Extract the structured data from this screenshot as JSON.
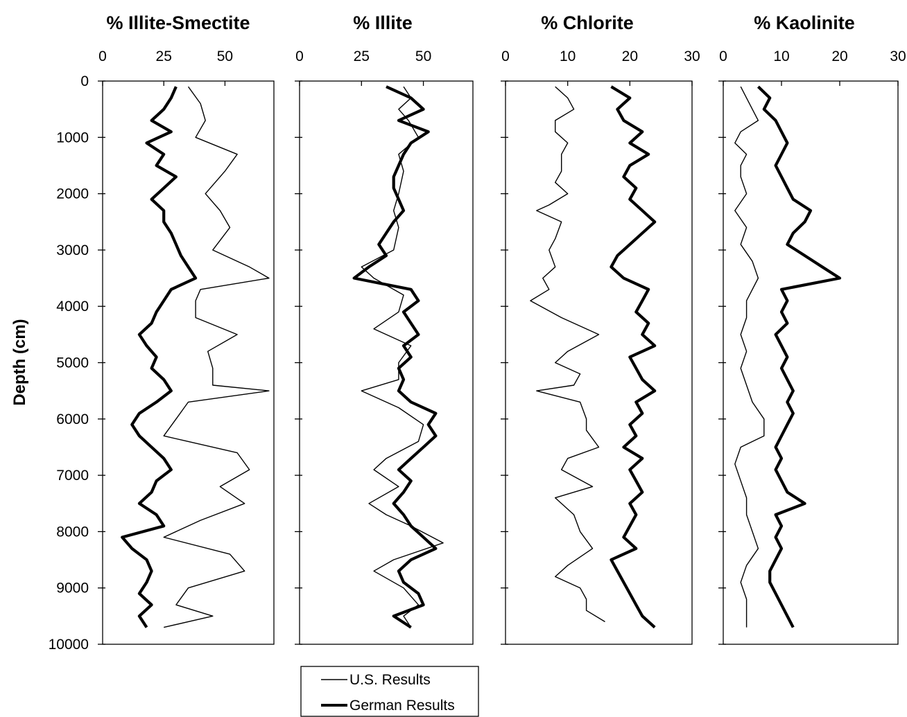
{
  "chart_data": {
    "type": "line",
    "y_axis": {
      "label": "Depth (cm)",
      "ticks": [
        "0",
        "1000",
        "2000",
        "3000",
        "4000",
        "5000",
        "6000",
        "7000",
        "8000",
        "9000",
        "10000"
      ],
      "range": [
        0,
        10000
      ],
      "inverted": true
    },
    "legend": {
      "placement": "bottom-center",
      "entries": [
        {
          "label": "U.S. Results",
          "style": "thin"
        },
        {
          "label": "German Results",
          "style": "thick"
        }
      ]
    },
    "panels": [
      {
        "title": "% Illite-Smectite",
        "xlim": [
          0,
          70
        ],
        "x_ticks": [
          "0",
          "25",
          "50"
        ],
        "series": [
          {
            "name": "U.S. Results",
            "depths": [
              100,
              400,
              700,
              1000,
              1300,
              1600,
              2000,
              2300,
              2600,
              3000,
              3300,
              3500,
              3700,
              3900,
              4200,
              4500,
              4800,
              5100,
              5400,
              5500,
              5700,
              6000,
              6300,
              6600,
              6900,
              7200,
              7500,
              7800,
              8100,
              8400,
              8700,
              9000,
              9300,
              9500,
              9700
            ],
            "values": [
              35,
              40,
              42,
              38,
              55,
              50,
              42,
              48,
              52,
              45,
              60,
              68,
              40,
              38,
              38,
              55,
              43,
              45,
              45,
              68,
              35,
              30,
              25,
              55,
              60,
              48,
              58,
              40,
              25,
              52,
              58,
              35,
              30,
              45,
              25
            ]
          },
          {
            "name": "German Results",
            "depths": [
              100,
              300,
              500,
              700,
              900,
              1100,
              1300,
              1500,
              1700,
              1900,
              2100,
              2300,
              2500,
              2700,
              2900,
              3100,
              3300,
              3500,
              3700,
              3900,
              4100,
              4300,
              4500,
              4700,
              4900,
              5100,
              5300,
              5500,
              5700,
              5900,
              6100,
              6300,
              6500,
              6700,
              6900,
              7100,
              7300,
              7500,
              7700,
              7900,
              8100,
              8300,
              8500,
              8700,
              8900,
              9100,
              9300,
              9500,
              9700
            ],
            "values": [
              30,
              28,
              25,
              20,
              28,
              18,
              25,
              22,
              30,
              25,
              20,
              25,
              25,
              28,
              30,
              32,
              35,
              38,
              28,
              25,
              22,
              20,
              15,
              18,
              22,
              20,
              25,
              28,
              22,
              15,
              12,
              15,
              20,
              25,
              28,
              22,
              20,
              15,
              22,
              25,
              8,
              12,
              18,
              20,
              18,
              15,
              20,
              15,
              18
            ]
          }
        ]
      },
      {
        "title": "% Illite",
        "xlim": [
          0,
          70
        ],
        "x_ticks": [
          "0",
          "25",
          "50"
        ],
        "series": [
          {
            "name": "U.S. Results",
            "depths": [
              100,
              300,
              500,
              700,
              1000,
              1300,
              1600,
              2000,
              2300,
              2600,
              3000,
              3300,
              3500,
              3800,
              4100,
              4400,
              4700,
              5000,
              5300,
              5500,
              5800,
              6100,
              6400,
              6700,
              6900,
              7200,
              7500,
              7700,
              7900,
              8200,
              8500,
              8700,
              9000,
              9300,
              9500,
              9700
            ],
            "values": [
              42,
              45,
              40,
              44,
              48,
              40,
              42,
              40,
              38,
              40,
              38,
              25,
              30,
              42,
              40,
              30,
              45,
              40,
              40,
              25,
              40,
              50,
              48,
              35,
              30,
              40,
              28,
              35,
              45,
              58,
              38,
              30,
              42,
              48,
              42,
              45
            ]
          },
          {
            "name": "German Results",
            "depths": [
              100,
              300,
              500,
              700,
              900,
              1100,
              1300,
              1500,
              1700,
              1900,
              2100,
              2300,
              2500,
              2700,
              2900,
              3100,
              3300,
              3500,
              3700,
              3900,
              4100,
              4300,
              4500,
              4700,
              4900,
              5100,
              5300,
              5500,
              5700,
              5900,
              6100,
              6300,
              6500,
              6700,
              6900,
              7100,
              7300,
              7500,
              7700,
              7900,
              8100,
              8300,
              8500,
              8700,
              8900,
              9100,
              9300,
              9500,
              9700
            ],
            "values": [
              35,
              45,
              50,
              40,
              52,
              45,
              42,
              40,
              38,
              38,
              40,
              42,
              38,
              35,
              32,
              35,
              28,
              22,
              45,
              48,
              42,
              45,
              48,
              42,
              45,
              40,
              42,
              40,
              45,
              55,
              52,
              55,
              50,
              45,
              40,
              45,
              42,
              38,
              42,
              45,
              50,
              55,
              45,
              40,
              42,
              48,
              50,
              38,
              45
            ]
          }
        ]
      },
      {
        "title": "% Chlorite",
        "xlim": [
          0,
          30
        ],
        "x_ticks": [
          "0",
          "10",
          "20",
          "30"
        ],
        "series": [
          {
            "name": "U.S. Results",
            "depths": [
              100,
              300,
              500,
              700,
              900,
              1100,
              1300,
              1600,
              1800,
              2000,
              2200,
              2300,
              2500,
              2800,
              3000,
              3300,
              3500,
              3700,
              3900,
              4200,
              4500,
              4800,
              5000,
              5200,
              5400,
              5500,
              5700,
              6000,
              6200,
              6500,
              6700,
              6900,
              7200,
              7400,
              7700,
              8000,
              8300,
              8600,
              8800,
              9000,
              9200,
              9400,
              9600
            ],
            "values": [
              8,
              10,
              11,
              8,
              8,
              10,
              9,
              9,
              8,
              10,
              7,
              5,
              9,
              8,
              7,
              8,
              6,
              7,
              4,
              9,
              15,
              10,
              8,
              12,
              11,
              5,
              12,
              13,
              13,
              15,
              10,
              9,
              14,
              8,
              11,
              12,
              14,
              10,
              8,
              12,
              13,
              13,
              16
            ]
          },
          {
            "name": "German Results",
            "depths": [
              100,
              300,
              500,
              700,
              900,
              1100,
              1300,
              1500,
              1700,
              1900,
              2100,
              2300,
              2500,
              2700,
              2900,
              3100,
              3300,
              3500,
              3700,
              3900,
              4100,
              4300,
              4500,
              4700,
              4900,
              5100,
              5300,
              5500,
              5700,
              5900,
              6100,
              6300,
              6500,
              6700,
              6900,
              7100,
              7300,
              7500,
              7700,
              7900,
              8100,
              8300,
              8500,
              8700,
              8900,
              9100,
              9300,
              9500,
              9700
            ],
            "values": [
              17,
              20,
              18,
              19,
              22,
              20,
              23,
              20,
              19,
              21,
              20,
              22,
              24,
              22,
              20,
              18,
              17,
              19,
              23,
              22,
              21,
              23,
              22,
              24,
              20,
              21,
              22,
              24,
              21,
              22,
              20,
              21,
              19,
              22,
              20,
              21,
              22,
              20,
              21,
              20,
              19,
              21,
              17,
              18,
              19,
              20,
              21,
              22,
              24
            ]
          }
        ]
      },
      {
        "title": "% Kaolinite",
        "xlim": [
          0,
          30
        ],
        "x_ticks": [
          "0",
          "10",
          "20",
          "30"
        ],
        "series": [
          {
            "name": "U.S. Results",
            "depths": [
              100,
              300,
              500,
              700,
              900,
              1100,
              1300,
              1500,
              1700,
              2000,
              2300,
              2600,
              2900,
              3200,
              3500,
              3900,
              4200,
              4500,
              4800,
              5100,
              5400,
              5700,
              6000,
              6300,
              6500,
              6800,
              7100,
              7400,
              7700,
              8000,
              8300,
              8600,
              8900,
              9200,
              9500,
              9700
            ],
            "values": [
              3,
              4,
              5,
              6,
              3,
              2,
              4,
              3,
              3,
              4,
              2,
              4,
              3,
              5,
              6,
              4,
              4,
              3,
              4,
              3,
              4,
              5,
              7,
              7,
              3,
              2,
              3,
              4,
              4,
              5,
              6,
              4,
              3,
              4,
              4,
              4
            ]
          },
          {
            "name": "German Results",
            "depths": [
              100,
              300,
              500,
              700,
              900,
              1100,
              1300,
              1500,
              1700,
              1900,
              2100,
              2300,
              2500,
              2700,
              2900,
              3100,
              3300,
              3500,
              3700,
              3900,
              4100,
              4300,
              4500,
              4700,
              4900,
              5100,
              5300,
              5500,
              5700,
              5900,
              6100,
              6300,
              6500,
              6700,
              6900,
              7100,
              7300,
              7500,
              7700,
              7900,
              8100,
              8300,
              8500,
              8700,
              8900,
              9100,
              9300,
              9500,
              9700
            ],
            "values": [
              6,
              8,
              7,
              9,
              10,
              11,
              10,
              9,
              10,
              11,
              12,
              15,
              14,
              12,
              11,
              14,
              17,
              20,
              10,
              11,
              10,
              11,
              9,
              10,
              11,
              10,
              11,
              12,
              11,
              12,
              11,
              10,
              9,
              10,
              9,
              10,
              11,
              14,
              9,
              10,
              9,
              10,
              9,
              8,
              8,
              9,
              10,
              11,
              12
            ]
          }
        ]
      }
    ]
  }
}
